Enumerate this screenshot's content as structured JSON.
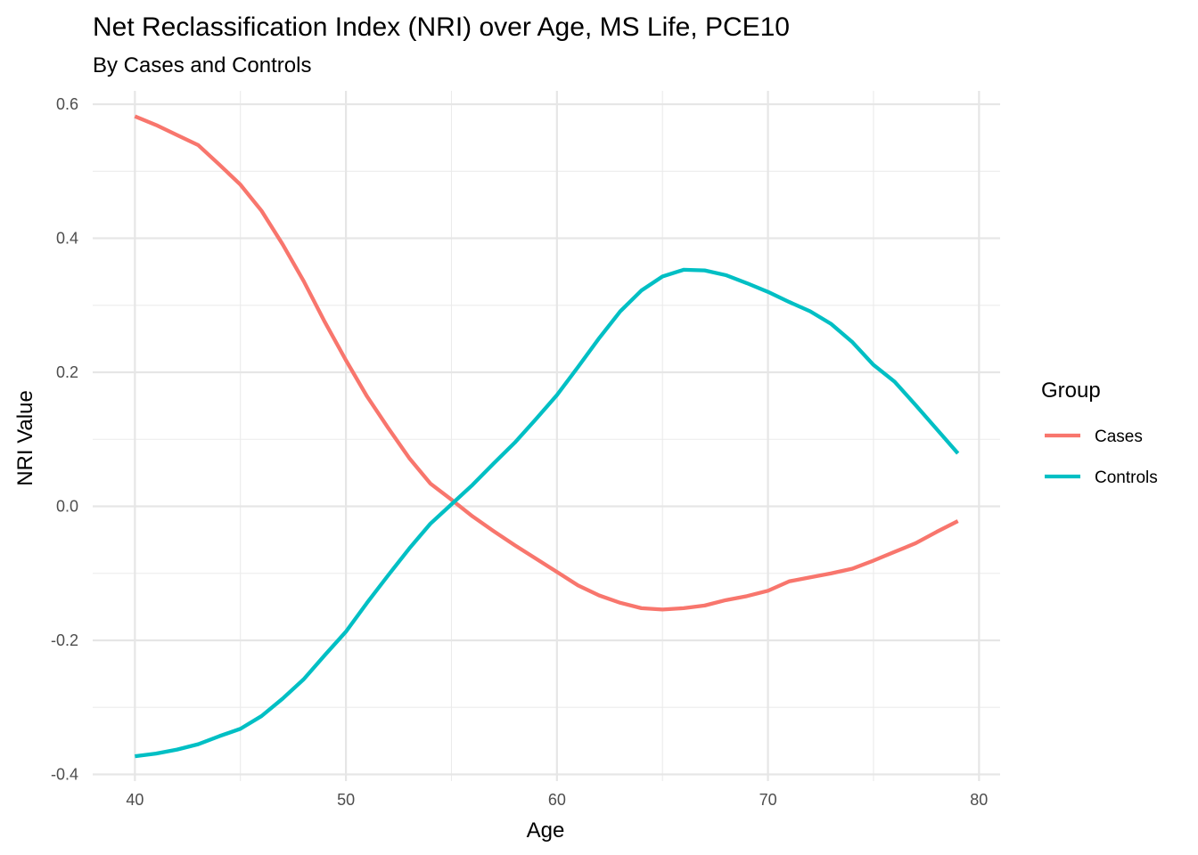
{
  "chart_data": {
    "type": "line",
    "title": "Net Reclassification Index (NRI) over Age, MS Life, PCE10",
    "subtitle": "By Cases and Controls",
    "xlabel": "Age",
    "ylabel": "NRI Value",
    "xlim": [
      38,
      81
    ],
    "ylim": [
      -0.41,
      0.62
    ],
    "x_ticks": [
      40,
      50,
      60,
      70,
      80
    ],
    "x_tick_labels": [
      "40",
      "50",
      "60",
      "70",
      "80"
    ],
    "y_ticks": [
      -0.4,
      -0.2,
      0.0,
      0.2,
      0.4,
      0.6
    ],
    "y_tick_labels": [
      "-0.4",
      "-0.2",
      "0.0",
      "0.2",
      "0.4",
      "0.6"
    ],
    "grid": true,
    "legend_title": "Group",
    "legend_position": "right",
    "x": [
      40,
      41,
      42,
      43,
      44,
      45,
      46,
      47,
      48,
      49,
      50,
      51,
      52,
      53,
      54,
      55,
      56,
      57,
      58,
      59,
      60,
      61,
      62,
      63,
      64,
      65,
      66,
      67,
      68,
      69,
      70,
      71,
      72,
      73,
      74,
      75,
      76,
      77,
      78,
      79
    ],
    "series": [
      {
        "name": "Cases",
        "color": "#F8766D",
        "values": [
          0.582,
          0.569,
          0.554,
          0.539,
          0.51,
          0.48,
          0.441,
          0.391,
          0.336,
          0.275,
          0.218,
          0.164,
          0.117,
          0.072,
          0.034,
          0.01,
          -0.015,
          -0.037,
          -0.058,
          -0.078,
          -0.098,
          -0.118,
          -0.133,
          -0.144,
          -0.152,
          -0.154,
          -0.152,
          -0.148,
          -0.14,
          -0.134,
          -0.126,
          -0.112,
          -0.106,
          -0.1,
          -0.093,
          -0.081,
          -0.068,
          -0.055,
          -0.038,
          -0.022
        ]
      },
      {
        "name": "Controls",
        "color": "#00BFC4",
        "values": [
          -0.373,
          -0.369,
          -0.363,
          -0.355,
          -0.343,
          -0.332,
          -0.313,
          -0.287,
          -0.258,
          -0.222,
          -0.187,
          -0.144,
          -0.103,
          -0.063,
          -0.026,
          0.003,
          0.032,
          0.064,
          0.095,
          0.13,
          0.166,
          0.208,
          0.251,
          0.291,
          0.322,
          0.343,
          0.353,
          0.352,
          0.345,
          0.333,
          0.32,
          0.305,
          0.291,
          0.272,
          0.245,
          0.211,
          0.186,
          0.151,
          0.115,
          0.079
        ]
      }
    ]
  }
}
